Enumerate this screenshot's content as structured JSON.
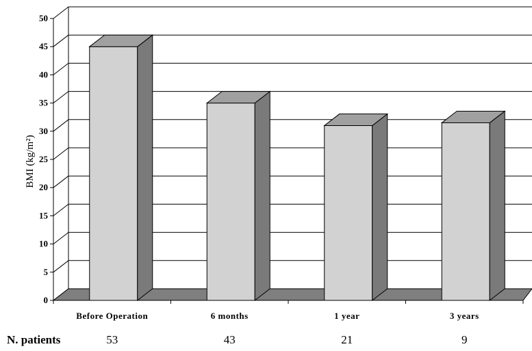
{
  "chart_data": {
    "type": "bar",
    "ylabel": "BMI (kg/m²)",
    "ylim": [
      0,
      50
    ],
    "yticks": [
      0,
      5,
      10,
      15,
      20,
      25,
      30,
      35,
      40,
      45,
      50
    ],
    "grid": true,
    "style": "3d",
    "categories": [
      "Before Operation",
      "6 months",
      "1 year",
      "3 years"
    ],
    "values": [
      45,
      35,
      31,
      31.5
    ],
    "patients_label": "N. patients",
    "patients": [
      "53",
      "43",
      "21",
      "9"
    ],
    "colors": {
      "bar_front": "#d2d2d2",
      "bar_side": "#7a7a7a",
      "bar_top": "#a0a0a0",
      "floor": "#7f7f7f"
    }
  }
}
